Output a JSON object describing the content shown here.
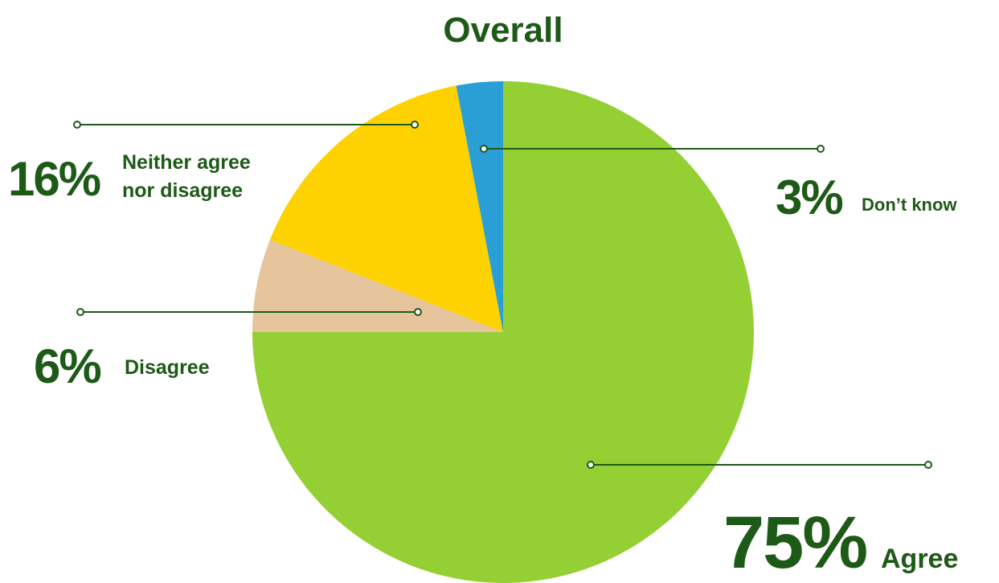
{
  "chart_data": {
    "type": "pie",
    "title": "Overall",
    "slices": [
      {
        "label": "Agree",
        "value": 75,
        "value_label": "75%",
        "color": "#94cf33"
      },
      {
        "label": "Disagree",
        "value": 6,
        "value_label": "6%",
        "color": "#e6c49c"
      },
      {
        "label": "Neither agree nor disagree",
        "value": 16,
        "value_label": "16%",
        "color": "#fed200",
        "label_lines": [
          "Neither agree",
          "nor disagree"
        ]
      },
      {
        "label": "Don't know",
        "value": 3,
        "value_label": "3%",
        "color": "#2a9fd6",
        "display_label": "Don’t know"
      }
    ]
  }
}
